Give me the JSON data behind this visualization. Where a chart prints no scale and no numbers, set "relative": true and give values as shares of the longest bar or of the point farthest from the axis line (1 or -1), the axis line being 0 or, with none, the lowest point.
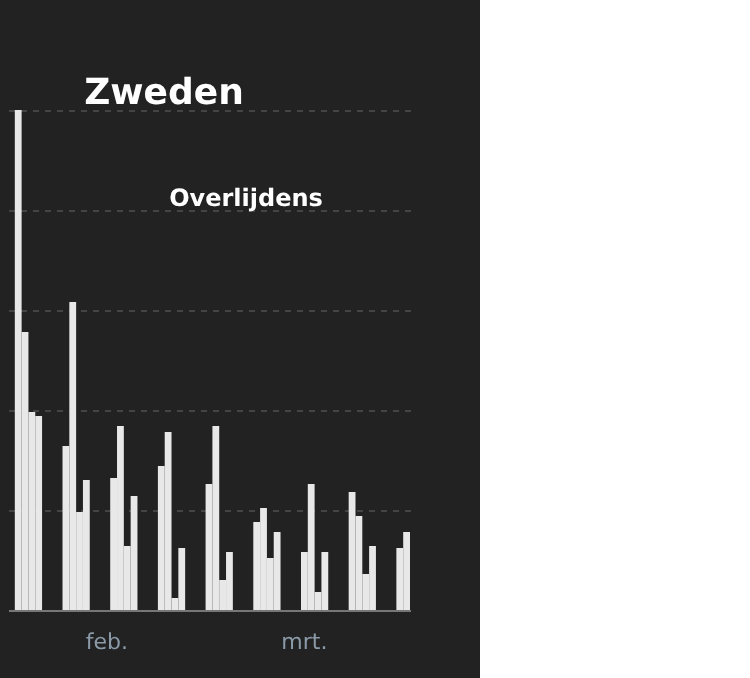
{
  "chart_data": {
    "type": "bar",
    "title": "Zweden",
    "subtitle": "Overlijdens",
    "relative": true,
    "categories": [
      null,
      null,
      null,
      null,
      null,
      null,
      null,
      null,
      null,
      null,
      null,
      null,
      null,
      null,
      "feb.",
      null,
      null,
      null,
      null,
      null,
      null,
      null,
      null,
      null,
      null,
      null,
      null,
      null,
      null,
      null,
      null,
      null,
      null,
      null,
      null,
      null,
      null,
      null,
      null,
      null,
      null,
      null,
      null,
      "mrt.",
      null,
      null,
      null,
      null,
      null,
      null,
      null,
      null,
      null,
      null,
      null,
      null,
      null,
      null,
      null
    ],
    "values": [
      null,
      1.0,
      0.556,
      0.396,
      0.388,
      null,
      null,
      null,
      0.328,
      0.616,
      0.196,
      0.26,
      null,
      null,
      null,
      0.264,
      0.368,
      0.128,
      0.228,
      null,
      null,
      null,
      0.288,
      0.356,
      0.024,
      0.124,
      null,
      null,
      null,
      0.252,
      0.368,
      0.06,
      0.116,
      null,
      null,
      null,
      0.176,
      0.204,
      0.104,
      0.156,
      null,
      null,
      null,
      0.116,
      0.252,
      0.036,
      0.116,
      null,
      null,
      null,
      0.236,
      0.188,
      0.072,
      0.128,
      null,
      null,
      null,
      0.124,
      0.156
    ],
    "color": "#e8e8e8",
    "grid": "y"
  }
}
